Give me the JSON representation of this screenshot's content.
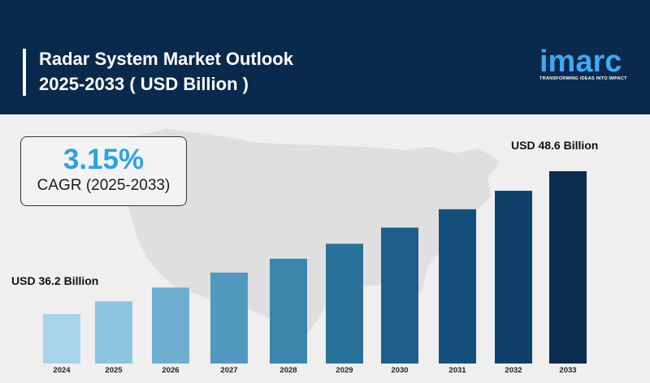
{
  "header": {
    "title_line1": "Radar System Market Outlook",
    "title_line2": "2025-2033 ( USD Billion )",
    "logo_text": "imarc",
    "logo_tagline": "TRANSFORMING IDEAS INTO IMPACT"
  },
  "cagr": {
    "value": "3.15%",
    "label": "CAGR (2025-2033)"
  },
  "annotations": {
    "first": "USD 36.2 Billion",
    "last": "USD 48.6 Billion"
  },
  "colors": {
    "header_bg": "#0a2a4d",
    "logo_blue": "#3fa9f5",
    "cagr_blue": "#29a3e8"
  },
  "chart_data": {
    "type": "bar",
    "title": "Radar System Market Outlook 2025-2033 ( USD Billion )",
    "categories": [
      "2024",
      "2025",
      "2026",
      "2027",
      "2028",
      "2029",
      "2030",
      "2031",
      "2032",
      "2033"
    ],
    "values": [
      36.2,
      37.3,
      38.5,
      39.8,
      41.0,
      42.3,
      43.7,
      45.3,
      46.9,
      48.6
    ],
    "bar_colors": [
      "#a8d4ea",
      "#8cc3df",
      "#6eafd1",
      "#5199bf",
      "#3a86ab",
      "#2a719a",
      "#1d5f8a",
      "#15507d",
      "#0f416b",
      "#0b2b4f"
    ],
    "xlabel": "",
    "ylabel": "",
    "grid": false
  }
}
